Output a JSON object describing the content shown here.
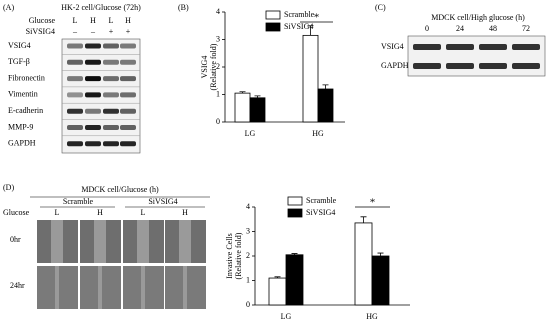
{
  "panel_labels": [
    "(A)",
    "(B)",
    "(C)",
    "(D)"
  ],
  "blot_a": {
    "title": "HK-2 cell/Glucose (72h)",
    "conditions": [
      {
        "name": "Glucose",
        "values": [
          "L",
          "H",
          "L",
          "H"
        ]
      },
      {
        "name": "SiVSIG4",
        "values": [
          "–",
          "–",
          "+",
          "+"
        ]
      }
    ],
    "rows": [
      "VSIG4",
      "TGF-β",
      "Fibronectin",
      "Vimentin",
      "E-cadherin",
      "MMP-9",
      "GAPDH"
    ]
  },
  "blot_c": {
    "title": "MDCK cell/High glucose (h)",
    "timepoints": [
      "0",
      "24",
      "48",
      "72"
    ],
    "rows": [
      "VSIG4",
      "GAPDH"
    ]
  },
  "assay_d": {
    "title": "MDCK cell/Glucose (h)",
    "groups": [
      "Scramble",
      "SiVSIG4"
    ],
    "condition": {
      "name": "Glucose",
      "values": [
        "L",
        "H",
        "L",
        "H"
      ]
    },
    "rows": [
      "0hr",
      "24hr"
    ]
  },
  "chart_data": [
    {
      "type": "bar",
      "ylabel": [
        "VSIG4",
        "(Relative fold)"
      ],
      "categories": [
        "LG",
        "HG"
      ],
      "series": [
        {
          "name": "Scramble",
          "color": "#ffffff",
          "values": [
            1.05,
            3.15
          ],
          "errors": [
            0.05,
            0.35
          ]
        },
        {
          "name": "SiVSIG4",
          "color": "#000000",
          "values": [
            0.88,
            1.2
          ],
          "errors": [
            0.07,
            0.15
          ]
        }
      ],
      "ylim": [
        0,
        4
      ],
      "yticks": [
        0,
        1,
        2,
        3,
        4
      ],
      "annotation": "*"
    },
    {
      "type": "bar",
      "ylabel": [
        "Invasive Cells",
        "(Relative fold)"
      ],
      "categories": [
        "LG",
        "HG"
      ],
      "series": [
        {
          "name": "Scramble",
          "color": "#ffffff",
          "values": [
            1.1,
            3.35
          ],
          "errors": [
            0.05,
            0.25
          ]
        },
        {
          "name": "SiVSIG4",
          "color": "#000000",
          "values": [
            2.05,
            2.0
          ],
          "errors": [
            0.05,
            0.12
          ]
        }
      ],
      "ylim": [
        0,
        4
      ],
      "yticks": [
        0,
        1,
        2,
        3,
        4
      ],
      "annotation": "*"
    }
  ]
}
